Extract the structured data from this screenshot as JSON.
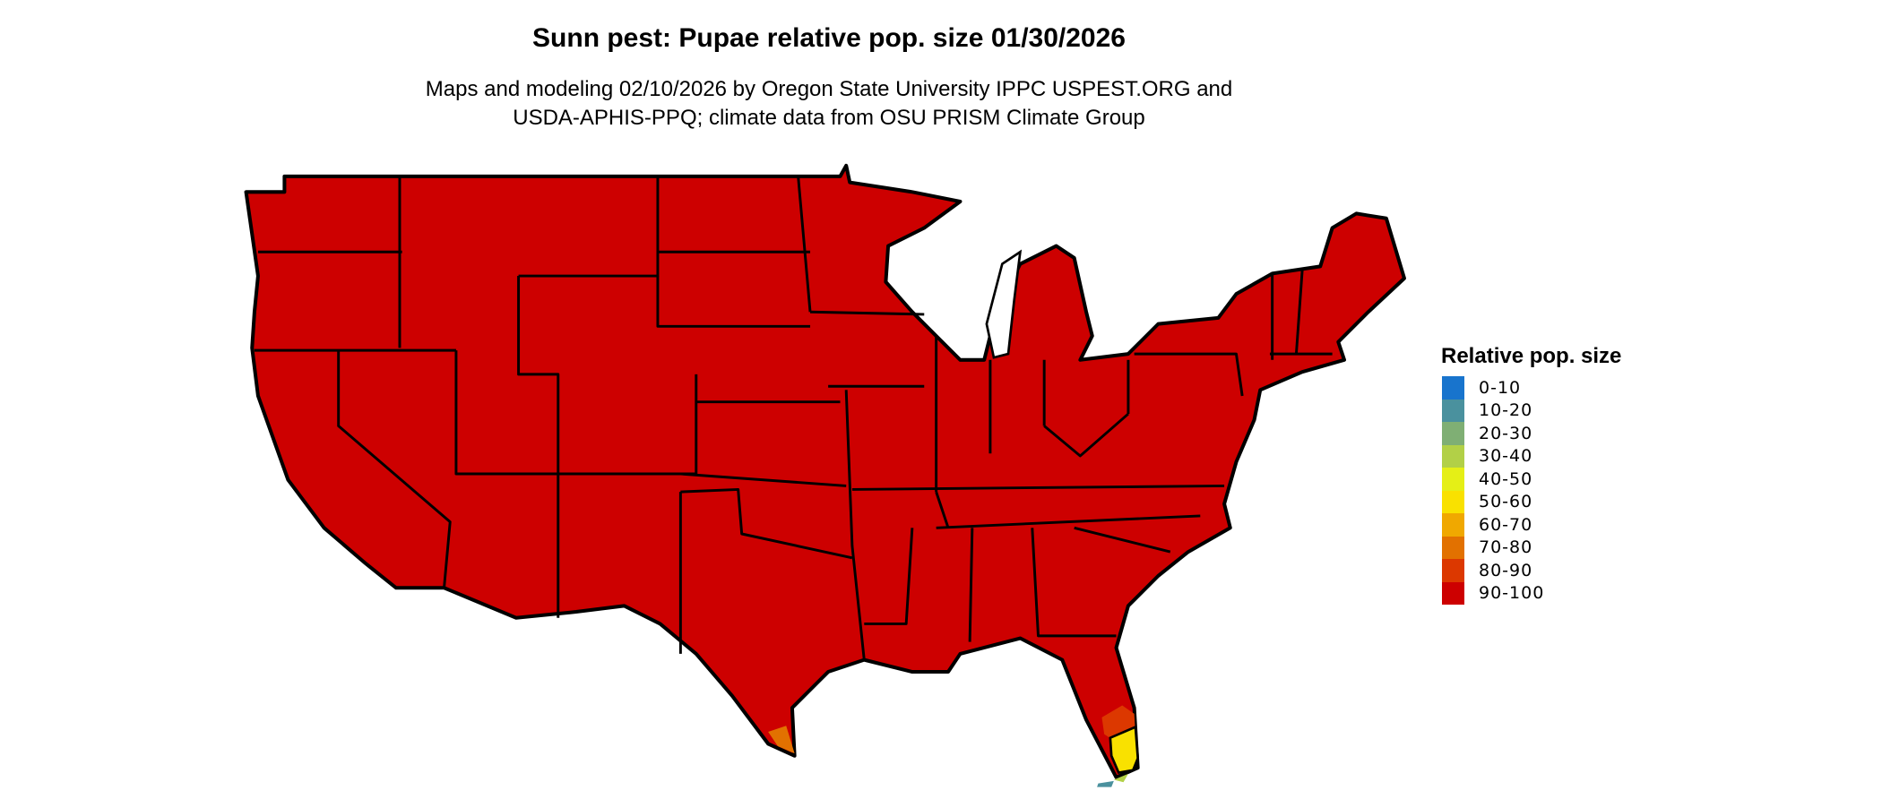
{
  "title": "Sunn pest: Pupae relative pop. size 01/30/2026",
  "subtitle_line1": "Maps and modeling 02/10/2026 by Oregon State University IPPC USPEST.ORG and",
  "subtitle_line2": "USDA-APHIS-PPQ; climate data from OSU PRISM Climate Group",
  "legend": {
    "title": "Relative pop. size",
    "items": [
      {
        "label": "0-10",
        "color": "#1874CD"
      },
      {
        "label": "10-20",
        "color": "#4A919E"
      },
      {
        "label": "20-30",
        "color": "#7FAF74"
      },
      {
        "label": "30-40",
        "color": "#B2D047"
      },
      {
        "label": "40-50",
        "color": "#E5EF16"
      },
      {
        "label": "50-60",
        "color": "#F9E100"
      },
      {
        "label": "60-70",
        "color": "#F0A800"
      },
      {
        "label": "70-80",
        "color": "#E27100"
      },
      {
        "label": "80-90",
        "color": "#DC3800"
      },
      {
        "label": "90-100",
        "color": "#CD0000"
      }
    ]
  },
  "map": {
    "region": "Contiguous United States",
    "dominant_class": "90-100",
    "dominant_color": "#CD0000",
    "south_florida_classes": [
      "80-90",
      "50-60",
      "30-40",
      "10-20"
    ],
    "south_texas_class": "70-80",
    "border_color": "#000000"
  }
}
